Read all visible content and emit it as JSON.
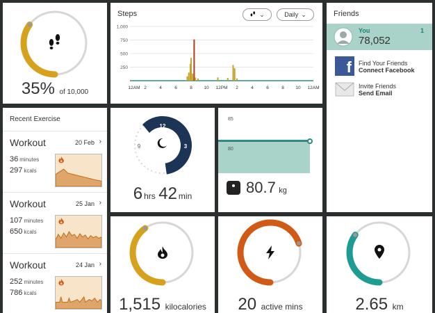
{
  "steps_tile": {
    "percent": "35%",
    "goal": "of 10,000",
    "progress": 0.35,
    "icon": "footprints-icon",
    "color": "#d6a21e"
  },
  "steps_chart": {
    "title": "Steps",
    "filter_icon": "footprints-icon",
    "period_label": "Daily",
    "yticks": [
      "1,000",
      "750",
      "500",
      "250"
    ],
    "xticks": [
      "12AM",
      "2",
      "4",
      "6",
      "8",
      "10",
      "12PM",
      "2",
      "4",
      "6",
      "8",
      "10",
      "12AM"
    ]
  },
  "chart_data": {
    "type": "bar",
    "title": "Steps",
    "ylim": [
      0,
      1000
    ],
    "x": [
      7.5,
      7.7,
      7.9,
      8.0,
      8.2,
      8.4,
      8.55,
      8.9,
      11.5,
      12.8,
      13.5,
      13.7,
      14.0
    ],
    "values": [
      80,
      150,
      310,
      420,
      130,
      760,
      60,
      40,
      60,
      50,
      290,
      230,
      40
    ],
    "highlight_index": 5,
    "colors": [
      "#c8a12a",
      "#b03a1e"
    ]
  },
  "friends": {
    "title": "Friends",
    "you": {
      "name": "You",
      "steps": "78,052",
      "rank": "1"
    },
    "find": {
      "line1": "Find Your Friends",
      "line2": "Connect Facebook"
    },
    "invite": {
      "line1": "Invite Friends",
      "line2": "Send Email"
    }
  },
  "recent_exercise": {
    "title": "Recent Exercise",
    "items": [
      {
        "title": "Workout",
        "date": "20 Feb",
        "minutes": "36",
        "minutes_unit": "minutes",
        "kcals": "297",
        "kcals_unit": "kcals"
      },
      {
        "title": "Workout",
        "date": "25 Jan",
        "minutes": "107",
        "minutes_unit": "minutes",
        "kcals": "650",
        "kcals_unit": "kcals"
      },
      {
        "title": "Workout",
        "date": "24 Jan",
        "minutes": "252",
        "minutes_unit": "minutes",
        "kcals": "786",
        "kcals_unit": "kcals"
      }
    ]
  },
  "sleep": {
    "hours": "6",
    "hours_unit": "hrs",
    "minutes": "42",
    "minutes_unit": "min",
    "clock_labels": [
      "12",
      "3",
      "6",
      "9"
    ],
    "icon": "moon-icon",
    "color": "#1c3557"
  },
  "weight": {
    "value": "80.7",
    "unit": "kg",
    "yticks": [
      "85",
      "80"
    ],
    "icon": "scale-icon",
    "color": "#a9d2c8"
  },
  "calories": {
    "value": "1,515",
    "unit": "kilocalories",
    "progress": 0.4,
    "icon": "flame-icon",
    "color": "#d6a21e"
  },
  "active": {
    "value": "20",
    "unit": "active mins",
    "progress": 0.7,
    "icon": "lightning-icon",
    "color": "#d05a16"
  },
  "distance": {
    "value": "2.65",
    "unit": "km",
    "progress": 0.35,
    "icon": "location-pin-icon",
    "color": "#1e9b93"
  }
}
